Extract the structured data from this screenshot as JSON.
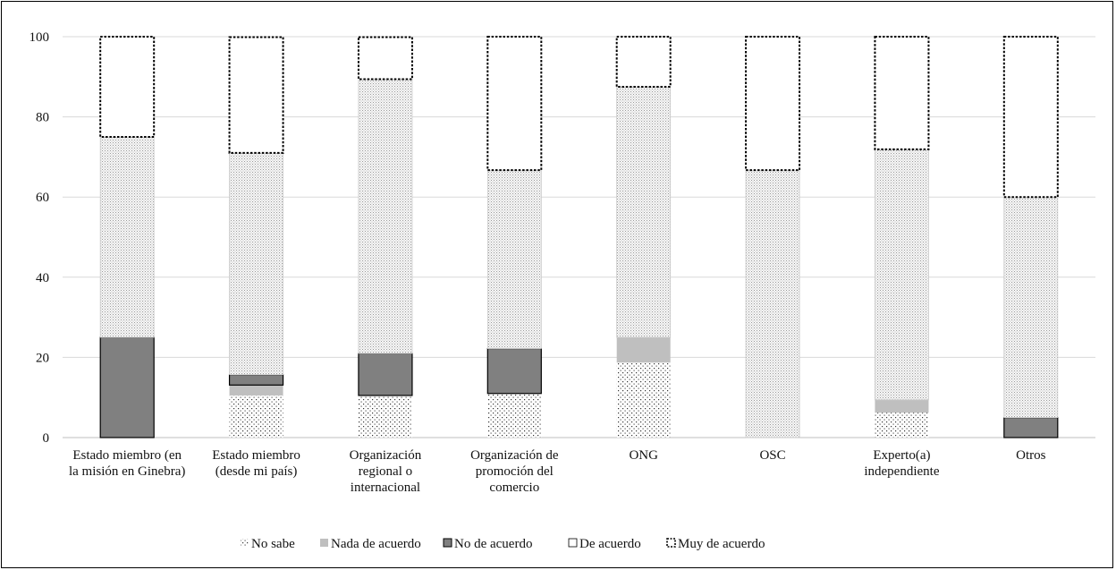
{
  "chart_data": {
    "type": "bar",
    "stacked": true,
    "title": "",
    "xlabel": "",
    "ylabel": "",
    "ylim": [
      0,
      100
    ],
    "yticks": [
      0,
      20,
      40,
      60,
      80,
      100
    ],
    "grid": true,
    "legend_position": "bottom",
    "categories": [
      [
        "Estado miembro (en",
        "la misión en Ginebra)"
      ],
      [
        "Estado miembro",
        "(desde mi país)"
      ],
      [
        "Organización",
        "regional o",
        "internacional"
      ],
      [
        "Organización de",
        "promoción del",
        "comercio"
      ],
      [
        "ONG"
      ],
      [
        "OSC"
      ],
      [
        "Experto(a)",
        "independiente"
      ],
      [
        "Otros"
      ]
    ],
    "series": [
      {
        "name": "No sabe",
        "pattern": "dots",
        "color": "#ffffff",
        "values": [
          0,
          10.5,
          10.5,
          11,
          18.7,
          0,
          6.2,
          0
        ]
      },
      {
        "name": "Nada de acuerdo",
        "pattern": "solid",
        "color": "#bfbfbf",
        "values": [
          0,
          2.6,
          0,
          0,
          6.3,
          0,
          3.2,
          0
        ]
      },
      {
        "name": "No de acuerdo",
        "pattern": "solid",
        "color": "#808080",
        "values": [
          25,
          2.6,
          10.5,
          11.2,
          0,
          0,
          0,
          5
        ]
      },
      {
        "name": "De acuerdo",
        "pattern": "fine-dots",
        "color": "#f2f2f2",
        "values": [
          50,
          55.3,
          68.4,
          44.5,
          62.5,
          66.7,
          62.5,
          55
        ]
      },
      {
        "name": "Muy de acuerdo",
        "pattern": "dashed-outline",
        "color": "#ffffff",
        "values": [
          25,
          28.9,
          10.5,
          33.3,
          12.5,
          33.3,
          28.1,
          40
        ]
      }
    ],
    "legend": [
      {
        "symbol": "⁚⁚",
        "label": "No sabe"
      },
      {
        "symbol": "■",
        "label": "Nada de acuerdo"
      },
      {
        "symbol": "■",
        "label": "No de acuerdo"
      },
      {
        "symbol": "□",
        "label": "De acuerdo"
      },
      {
        "symbol": "⛶",
        "label": "Muy de acuerdo"
      }
    ]
  }
}
